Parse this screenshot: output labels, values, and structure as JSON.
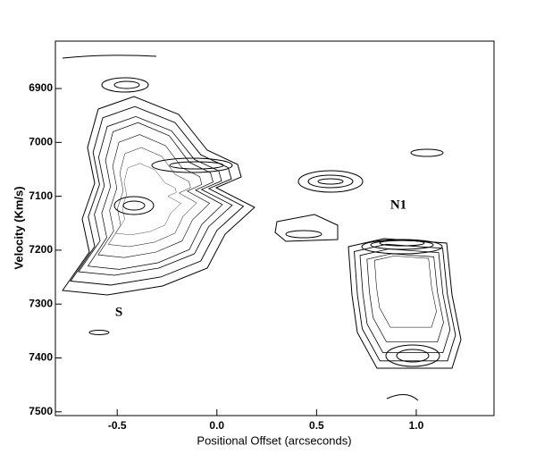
{
  "chart_data": {
    "type": "contour",
    "xlabel": "Positional Offset (arcseconds)",
    "ylabel": "Velocity (Km/s)",
    "annotations": [
      "S",
      "N1"
    ],
    "xlim": [
      -0.81,
      1.39
    ],
    "xticks": [
      -0.5,
      {
        "value": 0,
        "label": "0.0"
      },
      0.5,
      {
        "value": 1,
        "label": "1.0"
      }
    ],
    "ylim": [
      6812,
      7507
    ],
    "yticks": [
      6900,
      7000,
      7100,
      7200,
      7300,
      7400,
      7500
    ],
    "y_inverted": true,
    "color": "#000000"
  }
}
